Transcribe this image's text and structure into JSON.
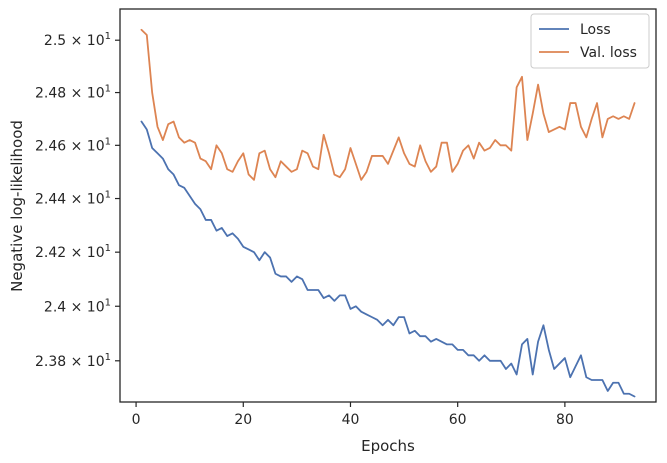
{
  "chart_data": {
    "type": "line",
    "title": "",
    "xlabel": "Epochs",
    "ylabel": "Negative log-likelihood",
    "yscale": "log",
    "xlim": [
      -3,
      97
    ],
    "ylim": [
      23.65,
      25.12
    ],
    "grid": false,
    "legend_position": "top-right",
    "x_ticks": [
      {
        "value": 0,
        "label": "0"
      },
      {
        "value": 20,
        "label": "20"
      },
      {
        "value": 40,
        "label": "40"
      },
      {
        "value": 60,
        "label": "60"
      },
      {
        "value": 80,
        "label": "80"
      }
    ],
    "y_ticks": [
      {
        "value": 23.8,
        "mant": "2.38",
        "exp": "1"
      },
      {
        "value": 24.0,
        "mant": "2.4",
        "exp": "1"
      },
      {
        "value": 24.2,
        "mant": "2.42",
        "exp": "1"
      },
      {
        "value": 24.4,
        "mant": "2.44",
        "exp": "1"
      },
      {
        "value": 24.6,
        "mant": "2.46",
        "exp": "1"
      },
      {
        "value": 24.8,
        "mant": "2.48",
        "exp": "1"
      },
      {
        "value": 25.0,
        "mant": "2.5",
        "exp": "1"
      }
    ],
    "series": [
      {
        "name": "Loss",
        "color": "#4c72b0",
        "x_start": 1,
        "values": [
          24.69,
          24.66,
          24.59,
          24.57,
          24.55,
          24.51,
          24.49,
          24.45,
          24.44,
          24.41,
          24.38,
          24.36,
          24.32,
          24.32,
          24.28,
          24.29,
          24.26,
          24.27,
          24.25,
          24.22,
          24.21,
          24.2,
          24.17,
          24.2,
          24.18,
          24.12,
          24.11,
          24.11,
          24.09,
          24.11,
          24.1,
          24.06,
          24.06,
          24.06,
          24.03,
          24.04,
          24.02,
          24.04,
          24.04,
          23.99,
          24.0,
          23.98,
          23.97,
          23.96,
          23.95,
          23.93,
          23.95,
          23.93,
          23.96,
          23.96,
          23.9,
          23.91,
          23.89,
          23.89,
          23.87,
          23.88,
          23.87,
          23.86,
          23.86,
          23.84,
          23.84,
          23.82,
          23.82,
          23.8,
          23.82,
          23.8,
          23.8,
          23.8,
          23.77,
          23.79,
          23.75,
          23.86,
          23.88,
          23.75,
          23.87,
          23.93,
          23.84,
          23.77,
          23.79,
          23.81,
          23.74,
          23.78,
          23.82,
          23.74,
          23.73,
          23.73,
          23.73,
          23.69,
          23.72,
          23.72,
          23.68,
          23.68,
          23.67
        ]
      },
      {
        "name": "Val. loss",
        "color": "#dd8452",
        "x_start": 1,
        "values": [
          25.04,
          25.02,
          24.8,
          24.67,
          24.62,
          24.68,
          24.69,
          24.63,
          24.61,
          24.62,
          24.61,
          24.55,
          24.54,
          24.51,
          24.6,
          24.57,
          24.51,
          24.5,
          24.54,
          24.57,
          24.49,
          24.47,
          24.57,
          24.58,
          24.51,
          24.48,
          24.54,
          24.52,
          24.5,
          24.51,
          24.58,
          24.57,
          24.52,
          24.51,
          24.64,
          24.57,
          24.49,
          24.48,
          24.51,
          24.59,
          24.53,
          24.47,
          24.5,
          24.56,
          24.56,
          24.56,
          24.53,
          24.58,
          24.63,
          24.57,
          24.53,
          24.52,
          24.6,
          24.54,
          24.5,
          24.52,
          24.61,
          24.61,
          24.5,
          24.53,
          24.58,
          24.6,
          24.55,
          24.61,
          24.58,
          24.59,
          24.62,
          24.6,
          24.6,
          24.58,
          24.82,
          24.86,
          24.62,
          24.72,
          24.83,
          24.72,
          24.65,
          24.66,
          24.67,
          24.66,
          24.76,
          24.76,
          24.67,
          24.63,
          24.7,
          24.76,
          24.63,
          24.7,
          24.71,
          24.7,
          24.71,
          24.7,
          24.76
        ]
      }
    ]
  }
}
